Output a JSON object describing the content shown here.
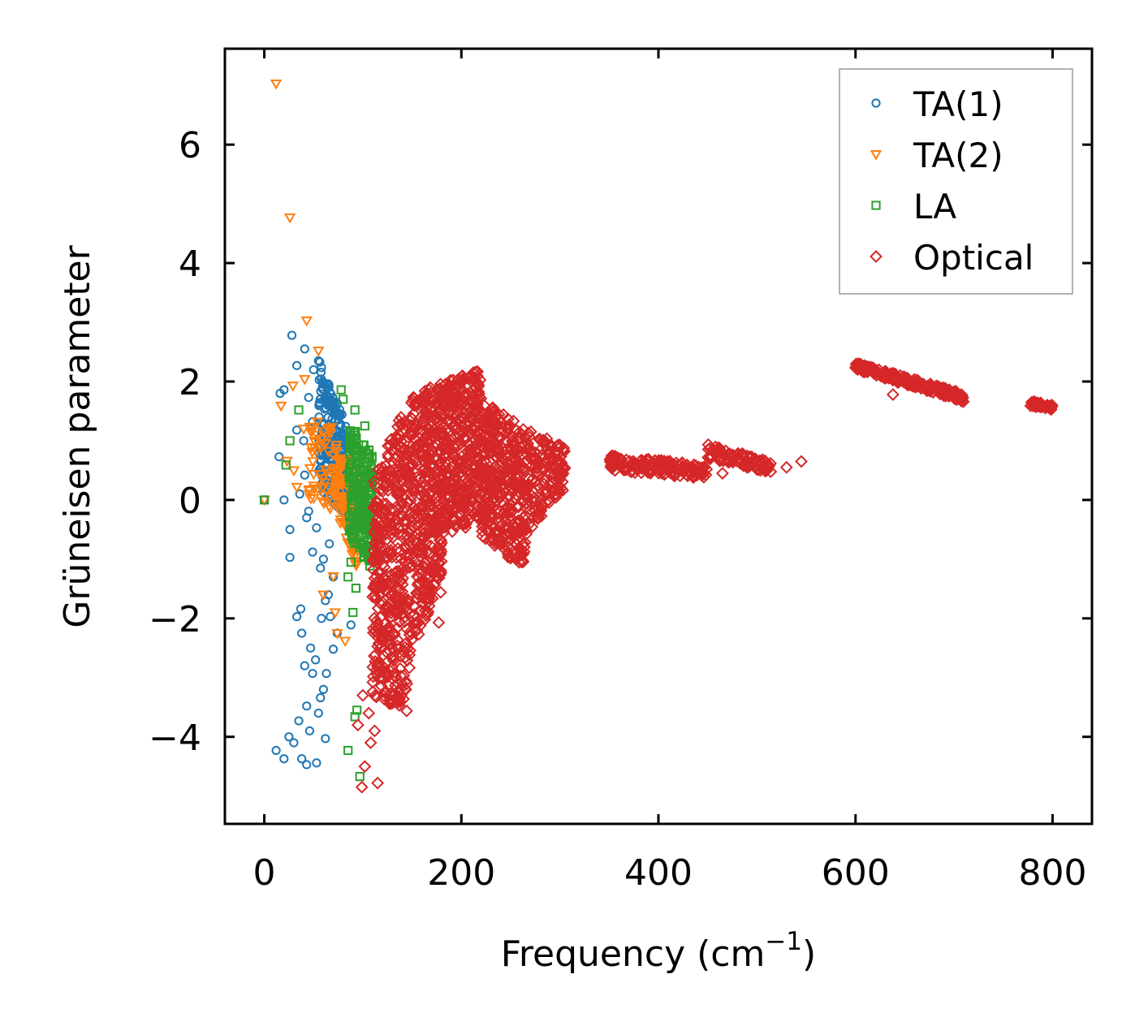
{
  "chart_data": {
    "type": "scatter",
    "title": "",
    "xlabel": "Frequency (cm",
    "xlabel_sup": "−1",
    "xlabel_close": ")",
    "ylabel": "Grüneisen parameter",
    "xlim": [
      -40,
      840
    ],
    "ylim": [
      -5.47,
      7.62
    ],
    "xticks": [
      0,
      200,
      400,
      600,
      800
    ],
    "xtick_labels": [
      "0",
      "200",
      "400",
      "600",
      "800"
    ],
    "yticks": [
      -4,
      -2,
      0,
      2,
      4,
      6
    ],
    "ytick_labels": [
      "−4",
      "−2",
      "0",
      "2",
      "4",
      "6"
    ],
    "grid": false,
    "legend_position": "top-right",
    "series": [
      {
        "name": "TA(1)",
        "marker": "circle",
        "color": "#1f77b4",
        "points": [
          [
            0,
            0
          ],
          [
            28,
            2.78
          ],
          [
            16,
            1.8
          ],
          [
            20,
            1.86
          ],
          [
            33,
            2.27
          ],
          [
            41,
            2.55
          ],
          [
            15,
            0.73
          ],
          [
            26,
            -0.5
          ],
          [
            26,
            -0.97
          ],
          [
            20,
            0
          ],
          [
            41,
            0.42
          ],
          [
            33,
            -1.97
          ],
          [
            37,
            -1.84
          ],
          [
            38,
            -2.25
          ],
          [
            41,
            -2.8
          ],
          [
            43,
            -3.48
          ],
          [
            35,
            -3.73
          ],
          [
            25,
            -4.0
          ],
          [
            12,
            -4.23
          ],
          [
            20,
            -4.37
          ],
          [
            38,
            -4.37
          ],
          [
            43,
            -4.47
          ],
          [
            53,
            -4.44
          ],
          [
            62,
            -4.03
          ],
          [
            49,
            -2.93
          ],
          [
            57,
            -3.34
          ],
          [
            63,
            -2.93
          ],
          [
            70,
            -2.52
          ],
          [
            74,
            -2.25
          ],
          [
            88,
            -2.11
          ],
          [
            57,
            -1.15
          ],
          [
            62,
            -1.7
          ],
          [
            67,
            -1.97
          ],
          [
            49,
            -0.88
          ],
          [
            53,
            -0.47
          ],
          [
            66,
            -0.74
          ],
          [
            45,
            -0.19
          ],
          [
            57,
            0.9
          ],
          [
            49,
            1.32
          ],
          [
            33,
            1.18
          ],
          [
            45,
            1.73
          ],
          [
            30,
            -4.1
          ],
          [
            46,
            -3.9
          ],
          [
            55,
            -3.6
          ],
          [
            60,
            -3.2
          ],
          [
            52,
            -2.7
          ],
          [
            47,
            -2.5
          ],
          [
            58,
            -2.0
          ],
          [
            65,
            -1.6
          ],
          [
            70,
            -1.3
          ],
          [
            60,
            -1.0
          ],
          [
            43,
            -0.3
          ],
          [
            36,
            0.1
          ],
          [
            40,
            1.0
          ],
          [
            50,
            2.2
          ],
          [
            55,
            2.35
          ]
        ],
        "bands": [
          {
            "x": [
              55,
              85
            ],
            "lo": [
              0.2,
              -0.3
            ],
            "hi": [
              2.4,
              1.2
            ],
            "n": 260
          }
        ]
      },
      {
        "name": "TA(2)",
        "marker": "triangle-down",
        "color": "#ff7f0e",
        "points": [
          [
            12,
            7.03
          ],
          [
            26,
            4.77
          ],
          [
            43,
            3.03
          ],
          [
            55,
            2.52
          ],
          [
            41,
            2.04
          ],
          [
            17,
            1.59
          ],
          [
            29,
            1.93
          ],
          [
            23,
            0.66
          ],
          [
            33,
            0.22
          ],
          [
            74,
            -2.25
          ],
          [
            70,
            -1.29
          ],
          [
            82,
            -2.38
          ],
          [
            0,
            0
          ],
          [
            30,
            0.5
          ],
          [
            40,
            1.2
          ],
          [
            60,
            -1.6
          ],
          [
            72,
            -1.9
          ]
        ],
        "bands": [
          {
            "x": [
              72,
              95
            ],
            "lo": [
              -0.2,
              -1.2
            ],
            "hi": [
              1.0,
              0.4
            ],
            "n": 120
          },
          {
            "x": [
              45,
              75
            ],
            "lo": [
              0.0,
              -0.2
            ],
            "hi": [
              1.6,
              1.2
            ],
            "n": 60
          }
        ]
      },
      {
        "name": "LA",
        "marker": "square",
        "color": "#2ca02c",
        "points": [
          [
            0,
            0
          ],
          [
            26,
            1.0
          ],
          [
            22,
            0.59
          ],
          [
            35,
            1.52
          ],
          [
            78,
            1.86
          ],
          [
            92,
            1.52
          ],
          [
            102,
            1.25
          ],
          [
            92,
            -3.66
          ],
          [
            85,
            -4.23
          ],
          [
            97,
            -4.67
          ],
          [
            90,
            -1.9
          ],
          [
            93,
            -1.49
          ],
          [
            94,
            -3.55
          ],
          [
            85,
            -1.3
          ],
          [
            88,
            -1.05
          ],
          [
            80,
            1.7
          ]
        ],
        "bands": [
          {
            "x": [
              86,
              110
            ],
            "lo": [
              -0.6,
              -1.2
            ],
            "hi": [
              1.3,
              0.8
            ],
            "n": 220
          }
        ]
      },
      {
        "name": "Optical",
        "marker": "diamond",
        "color": "#d62728",
        "points": [
          [
            99,
            -4.85
          ],
          [
            115,
            -4.78
          ],
          [
            177,
            -2.07
          ],
          [
            179,
            -1.56
          ],
          [
            638,
            1.78
          ],
          [
            545,
            0.65
          ],
          [
            530,
            0.55
          ],
          [
            510,
            0.5
          ],
          [
            490,
            0.55
          ],
          [
            465,
            0.45
          ],
          [
            102,
            -4.5
          ],
          [
            108,
            -4.1
          ],
          [
            112,
            -3.9
          ],
          [
            100,
            -3.3
          ],
          [
            106,
            -3.6
          ],
          [
            95,
            -3.8
          ]
        ],
        "bands": [
          {
            "x": [
              110,
              145
            ],
            "lo": [
              -3.3,
              -3.6
            ],
            "hi": [
              0.3,
              1.7
            ],
            "n": 420
          },
          {
            "x": [
              145,
              180
            ],
            "lo": [
              -3.0,
              -1.2
            ],
            "hi": [
              1.7,
              2.0
            ],
            "n": 420
          },
          {
            "x": [
              180,
              220
            ],
            "lo": [
              -0.6,
              -0.4
            ],
            "hi": [
              2.0,
              2.2
            ],
            "n": 380
          },
          {
            "x": [
              220,
              265
            ],
            "lo": [
              -0.6,
              -1.2
            ],
            "hi": [
              1.7,
              1.2
            ],
            "n": 380
          },
          {
            "x": [
              265,
              305
            ],
            "lo": [
              -0.6,
              0.2
            ],
            "hi": [
              1.2,
              0.9
            ],
            "n": 160
          },
          {
            "x": [
              350,
              450
            ],
            "lo": [
              0.5,
              0.35
            ],
            "hi": [
              0.75,
              0.6
            ],
            "n": 160
          },
          {
            "x": [
              450,
              515
            ],
            "lo": [
              0.7,
              0.45
            ],
            "hi": [
              0.95,
              0.65
            ],
            "n": 90
          },
          {
            "x": [
              600,
              710
            ],
            "lo": [
              2.2,
              1.65
            ],
            "hi": [
              2.32,
              1.8
            ],
            "n": 220
          },
          {
            "x": [
              775,
              800
            ],
            "lo": [
              1.6,
              1.5
            ],
            "hi": [
              1.7,
              1.6
            ],
            "n": 40
          }
        ]
      }
    ]
  }
}
